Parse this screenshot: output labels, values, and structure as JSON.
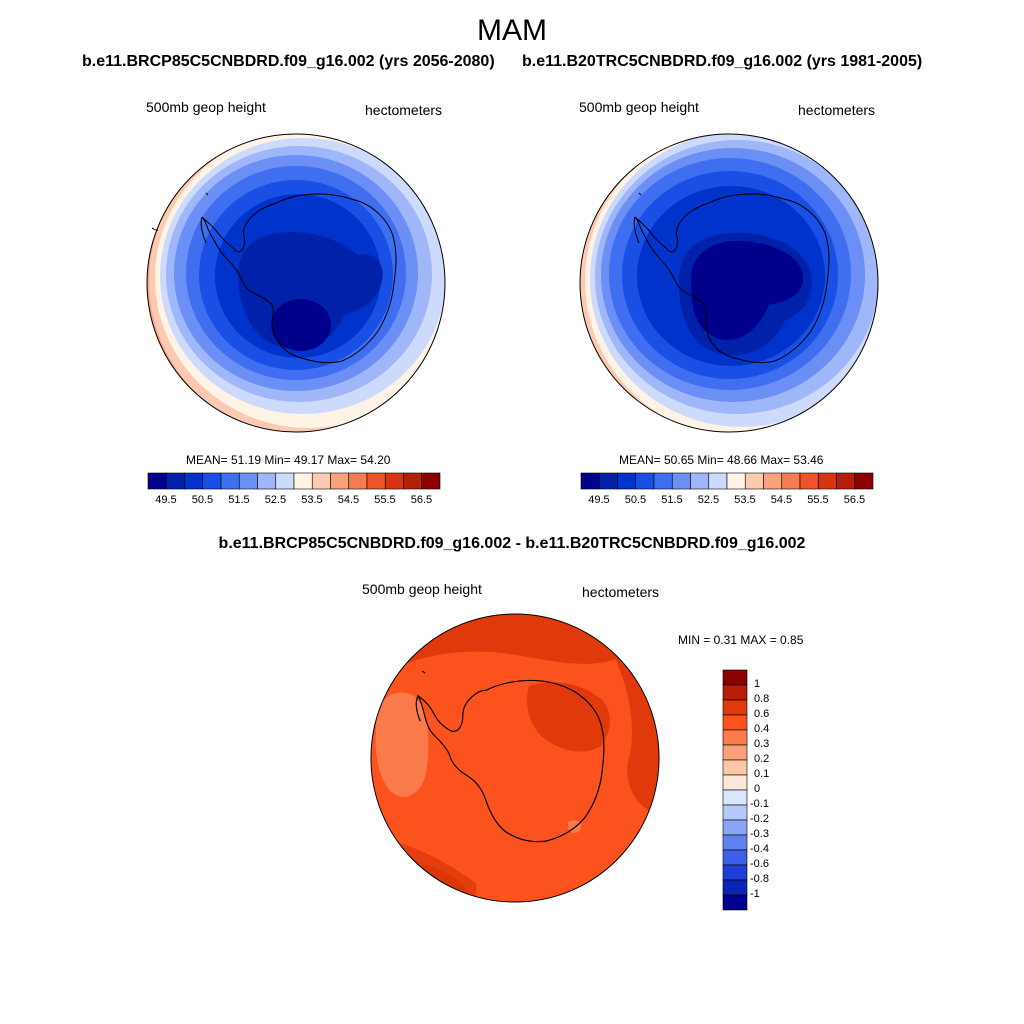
{
  "figure": {
    "title": "MAM",
    "panel_left_title": "b.e11.BRCP85C5CNBDRD.f09_g16.002 (yrs 2056-2080)",
    "panel_right_title": "b.e11.B20TRC5CNBDRD.f09_g16.002 (yrs 1981-2005)",
    "panel_diff_title": "b.e11.BRCP85C5CNBDRD.f09_g16.002 - b.e11.B20TRC5CNBDRD.f09_g16.002"
  },
  "panels": [
    {
      "variable_label": "500mb geop height",
      "units_label": "hectometers",
      "stats_text": "MEAN=  51.19  Min=  49.17  Max=  54.20",
      "mean": 51.19,
      "min": 49.17,
      "max": 54.2
    },
    {
      "variable_label": "500mb geop height",
      "units_label": "hectometers",
      "stats_text": "MEAN=  50.65  Min=  48.66  Max=  53.46",
      "mean": 50.65,
      "min": 48.66,
      "max": 53.46
    },
    {
      "variable_label": "500mb geop height",
      "units_label": "hectometers",
      "stats_text": "MIN =   0.31 MAX =   0.85",
      "min": 0.31,
      "max": 0.85
    }
  ],
  "colorbar_abs": {
    "tick_labels": [
      "49.5",
      "50.5",
      "51.5",
      "52.5",
      "53.5",
      "54.5",
      "55.5",
      "56.5"
    ],
    "colors": [
      "#00008b",
      "#0022aa",
      "#0033cc",
      "#1a4fe6",
      "#3f6ff0",
      "#6b8ff5",
      "#9fb6f8",
      "#cddafb",
      "#fff3e6",
      "#fccab0",
      "#f9a27d",
      "#f57b50",
      "#ee5428",
      "#d63510",
      "#b31f08",
      "#8b0000"
    ]
  },
  "colorbar_diff": {
    "tick_labels": [
      "1",
      "0.8",
      "0.6",
      "0.4",
      "0.3",
      "0.2",
      "0.1",
      "0",
      "-0.1",
      "-0.2",
      "-0.3",
      "-0.4",
      "-0.6",
      "-0.8",
      "-1"
    ],
    "colors": [
      "#8b0000",
      "#b81d05",
      "#e03a0c",
      "#fb521e",
      "#fa7a4a",
      "#f9a078",
      "#fbc7a8",
      "#fde8d8",
      "#dbe5fb",
      "#b5c9f8",
      "#8ba7f4",
      "#5f82ee",
      "#3b5fe6",
      "#1c3fd6",
      "#0a25b5",
      "#00008b"
    ]
  },
  "map_colors": {
    "abs_levels": [
      "#00008b",
      "#0022aa",
      "#0033cc",
      "#1a4fe6",
      "#3f6ff0",
      "#6b8ff5",
      "#9fb6f8",
      "#cddafb",
      "#fff3e6",
      "#fccab0",
      "#f9a27d"
    ],
    "diff_base": "#fb521e",
    "diff_high": "#e03a0c",
    "diff_low": "#fa7a4a",
    "diff_max": "#b81d05",
    "land_outline": "#000000"
  }
}
